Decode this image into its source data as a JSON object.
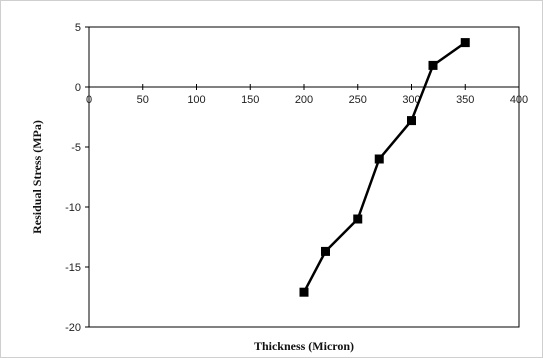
{
  "chart_data": {
    "type": "line",
    "title": "",
    "xlabel": "Thickness (Micron)",
    "ylabel": "Residual Stress (MPa)",
    "xlim": [
      0,
      400
    ],
    "ylim": [
      -20,
      5
    ],
    "xticks": [
      0,
      50,
      100,
      150,
      200,
      250,
      300,
      350,
      400
    ],
    "yticks": [
      5,
      0,
      -5,
      -10,
      -15,
      -20
    ],
    "grid": false,
    "legend": "none",
    "series": [
      {
        "x": [
          200,
          220,
          250,
          270,
          300,
          320,
          350
        ],
        "y": [
          -17.1,
          -13.7,
          -11.0,
          -6.0,
          -2.8,
          1.8,
          3.7
        ],
        "color": "#000000",
        "marker": "square"
      }
    ]
  }
}
